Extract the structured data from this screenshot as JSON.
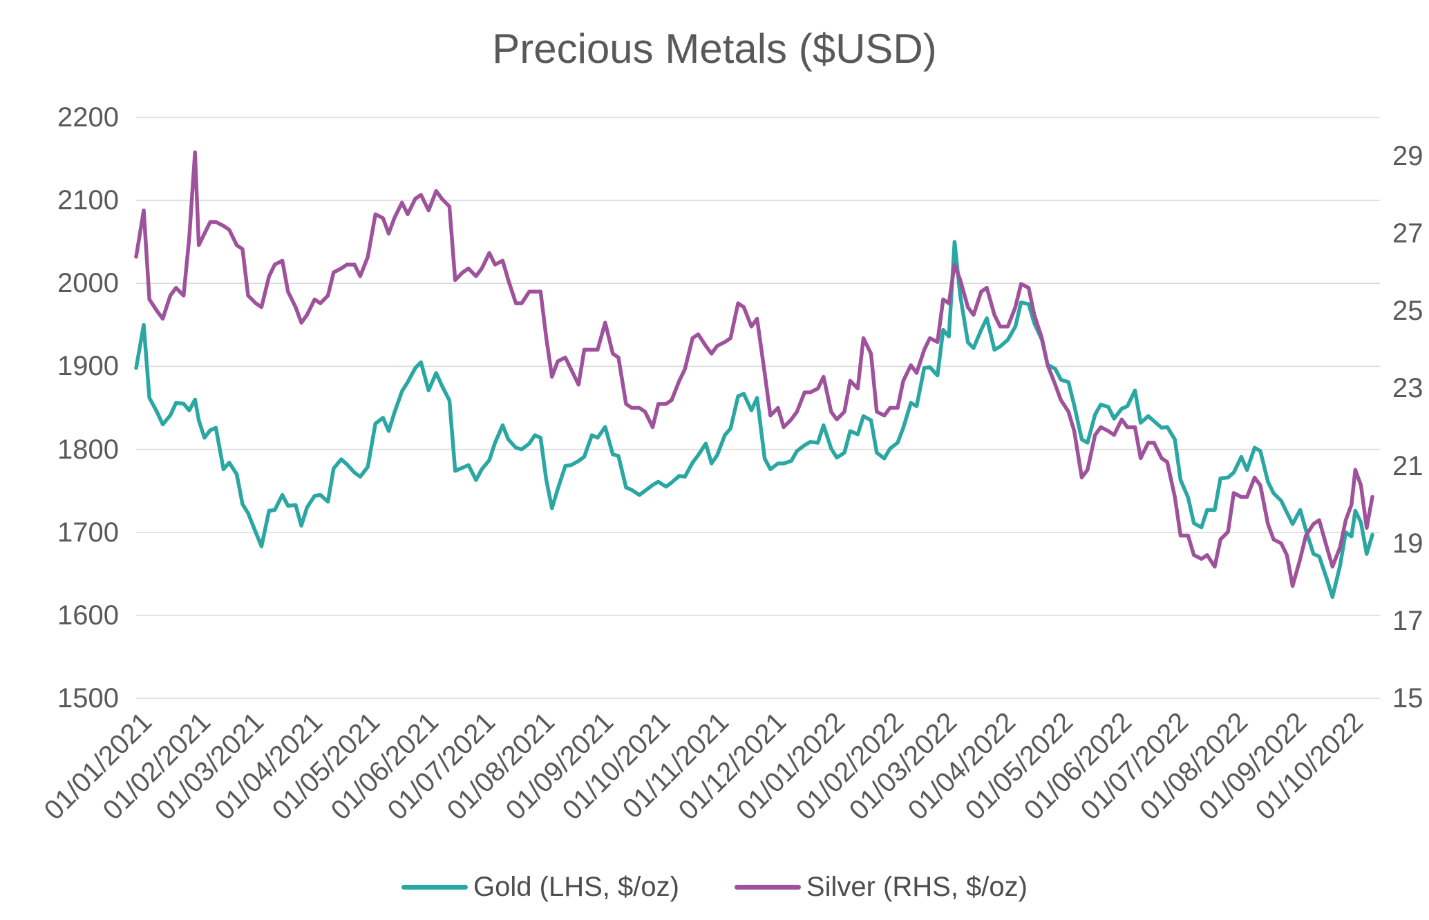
{
  "chart_data": {
    "type": "line",
    "title": "Precious Metals ($USD)",
    "grid": "horizontal",
    "grid_color": "#d9d9d9",
    "legend_position": "bottom",
    "left_axis": {
      "min": 1500,
      "max": 2200,
      "ticks": [
        2200,
        2100,
        2000,
        1900,
        1800,
        1700,
        1600,
        1500
      ]
    },
    "right_axis": {
      "min": 15,
      "max": 30,
      "ticks": [
        29,
        27,
        25,
        23,
        21,
        19,
        17,
        15
      ]
    },
    "x_domain": [
      0,
      655
    ],
    "x_tick_labels": [
      "01/01/2021",
      "01/02/2021",
      "01/03/2021",
      "01/04/2021",
      "01/05/2021",
      "01/06/2021",
      "01/07/2021",
      "01/08/2021",
      "01/09/2021",
      "01/10/2021",
      "01/11/2021",
      "01/12/2021",
      "01/01/2022",
      "01/02/2022",
      "01/03/2022",
      "01/04/2022",
      "01/05/2022",
      "01/06/2022",
      "01/07/2022",
      "01/08/2022",
      "01/09/2022",
      "01/10/2022"
    ],
    "x_tick_days": [
      0,
      31,
      59,
      90,
      120,
      151,
      181,
      212,
      243,
      273,
      304,
      334,
      365,
      396,
      424,
      455,
      485,
      516,
      546,
      577,
      608,
      638
    ],
    "x_days": [
      0,
      4,
      7,
      11,
      14,
      18,
      21,
      25,
      28,
      31,
      33,
      36,
      39,
      42,
      46,
      49,
      53,
      56,
      59,
      63,
      66,
      70,
      73,
      77,
      80,
      84,
      87,
      90,
      94,
      97,
      101,
      104,
      108,
      111,
      115,
      118,
      122,
      126,
      130,
      133,
      136,
      140,
      143,
      147,
      150,
      154,
      158,
      161,
      165,
      168,
      172,
      175,
      179,
      182,
      186,
      189,
      193,
      196,
      200,
      203,
      207,
      210,
      213,
      216,
      219,
      222,
      226,
      229,
      233,
      236,
      240,
      243,
      247,
      251,
      254,
      258,
      261,
      265,
      268,
      272,
      275,
      279,
      282,
      286,
      289,
      293,
      296,
      300,
      303,
      306,
      310,
      313,
      317,
      320,
      324,
      327,
      331,
      334,
      338,
      341,
      345,
      348,
      352,
      355,
      359,
      362,
      366,
      369,
      373,
      376,
      380,
      383,
      387,
      390,
      394,
      397,
      401,
      404,
      408,
      411,
      415,
      418,
      422,
      425,
      428,
      431,
      434,
      438,
      441,
      445,
      448,
      452,
      455,
      459,
      463,
      466,
      470,
      473,
      477,
      480,
      484,
      487,
      491,
      494,
      498,
      501,
      505,
      508,
      512,
      515,
      519,
      522,
      526,
      529,
      533,
      536,
      540,
      543,
      547,
      550,
      554,
      557,
      561,
      564,
      568,
      571,
      575,
      578,
      582,
      585,
      589,
      592,
      596,
      599,
      603,
      606,
      609,
      613,
      616,
      620,
      623,
      627,
      630,
      634,
      637,
      640,
      642,
      645,
      648,
      651
    ],
    "series": [
      {
        "name": "Gold (LHS, $/oz)",
        "axis": "left",
        "color": "#2aa7a3",
        "values": [
          1898,
          1950,
          1862,
          1845,
          1830,
          1841,
          1856,
          1855,
          1847,
          1860,
          1835,
          1814,
          1823,
          1826,
          1776,
          1784,
          1770,
          1734,
          1723,
          1700,
          1683,
          1726,
          1727,
          1745,
          1732,
          1733,
          1708,
          1730,
          1744,
          1745,
          1737,
          1777,
          1788,
          1782,
          1772,
          1767,
          1779,
          1831,
          1838,
          1822,
          1844,
          1870,
          1881,
          1898,
          1905,
          1871,
          1892,
          1877,
          1859,
          1774,
          1778,
          1781,
          1763,
          1776,
          1787,
          1808,
          1829,
          1812,
          1802,
          1800,
          1807,
          1817,
          1814,
          1763,
          1729,
          1752,
          1780,
          1781,
          1786,
          1791,
          1817,
          1814,
          1827,
          1794,
          1792,
          1754,
          1751,
          1745,
          1750,
          1757,
          1761,
          1755,
          1760,
          1768,
          1767,
          1784,
          1793,
          1807,
          1783,
          1793,
          1817,
          1825,
          1864,
          1867,
          1847,
          1862,
          1789,
          1776,
          1783,
          1783,
          1786,
          1798,
          1805,
          1809,
          1808,
          1829,
          1801,
          1790,
          1796,
          1822,
          1818,
          1840,
          1835,
          1796,
          1789,
          1801,
          1808,
          1826,
          1856,
          1852,
          1898,
          1899,
          1889,
          1944,
          1936,
          2050,
          1985,
          1929,
          1922,
          1944,
          1958,
          1920,
          1924,
          1932,
          1948,
          1977,
          1975,
          1952,
          1932,
          1902,
          1897,
          1884,
          1881,
          1853,
          1812,
          1808,
          1842,
          1854,
          1851,
          1837,
          1849,
          1852,
          1871,
          1832,
          1840,
          1834,
          1826,
          1827,
          1812,
          1763,
          1742,
          1711,
          1706,
          1727,
          1727,
          1765,
          1766,
          1772,
          1791,
          1775,
          1802,
          1798,
          1761,
          1747,
          1738,
          1724,
          1710,
          1727,
          1703,
          1674,
          1671,
          1644,
          1622,
          1660,
          1700,
          1695,
          1726,
          1712,
          1674,
          1697
        ]
      },
      {
        "name": "Silver (RHS, $/oz)",
        "axis": "right",
        "color": "#9e529b",
        "values": [
          26.4,
          27.6,
          25.3,
          25.0,
          24.8,
          25.4,
          25.6,
          25.4,
          26.9,
          29.1,
          26.7,
          27.0,
          27.3,
          27.3,
          27.2,
          27.1,
          26.7,
          26.6,
          25.4,
          25.2,
          25.1,
          25.9,
          26.2,
          26.3,
          25.5,
          25.1,
          24.7,
          24.9,
          25.3,
          25.2,
          25.4,
          26.0,
          26.1,
          26.2,
          26.2,
          25.9,
          26.4,
          27.5,
          27.4,
          27.0,
          27.4,
          27.8,
          27.5,
          27.9,
          28.0,
          27.6,
          28.1,
          27.9,
          27.7,
          25.8,
          26.0,
          26.1,
          25.9,
          26.1,
          26.5,
          26.2,
          26.3,
          25.8,
          25.2,
          25.2,
          25.5,
          25.5,
          25.5,
          24.3,
          23.3,
          23.7,
          23.8,
          23.5,
          23.1,
          24.0,
          24.0,
          24.0,
          24.7,
          23.9,
          23.8,
          22.6,
          22.5,
          22.5,
          22.4,
          22.0,
          22.6,
          22.6,
          22.7,
          23.2,
          23.5,
          24.3,
          24.4,
          24.1,
          23.9,
          24.1,
          24.2,
          24.3,
          25.2,
          25.1,
          24.6,
          24.8,
          23.4,
          22.3,
          22.5,
          22.0,
          22.2,
          22.4,
          22.9,
          22.9,
          23.0,
          23.3,
          22.4,
          22.2,
          22.4,
          23.2,
          23.0,
          24.3,
          23.9,
          22.4,
          22.3,
          22.5,
          22.5,
          23.2,
          23.6,
          23.4,
          24.0,
          24.3,
          24.2,
          25.3,
          25.2,
          26.2,
          25.8,
          25.1,
          24.9,
          25.5,
          25.6,
          24.9,
          24.6,
          24.6,
          25.1,
          25.7,
          25.6,
          24.9,
          24.3,
          23.6,
          23.1,
          22.7,
          22.4,
          21.9,
          20.7,
          20.9,
          21.8,
          22.0,
          21.9,
          21.8,
          22.2,
          22.0,
          22.0,
          21.2,
          21.6,
          21.6,
          21.2,
          21.1,
          20.2,
          19.2,
          19.2,
          18.7,
          18.6,
          18.7,
          18.4,
          19.1,
          19.3,
          20.3,
          20.2,
          20.2,
          20.7,
          20.5,
          19.5,
          19.1,
          19.0,
          18.7,
          17.9,
          18.6,
          19.2,
          19.5,
          19.6,
          18.9,
          18.4,
          18.9,
          19.6,
          20.0,
          20.9,
          20.5,
          19.4,
          20.2
        ]
      }
    ]
  }
}
